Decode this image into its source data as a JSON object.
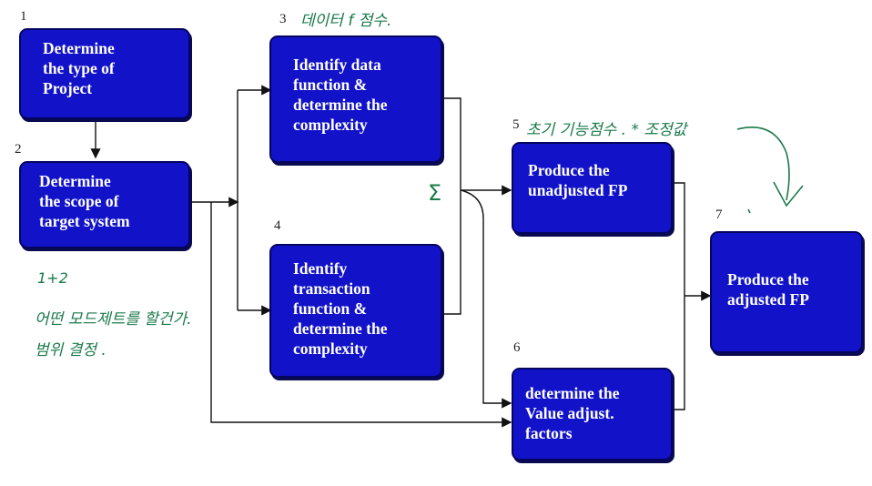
{
  "steps": [
    {
      "num": "1",
      "label": "Determine\nthe type of\nProject"
    },
    {
      "num": "2",
      "label": "Determine\nthe scope of\ntarget system"
    },
    {
      "num": "3",
      "label": "Identify data\nfunction &\ndetermine the\ncomplexity"
    },
    {
      "num": "4",
      "label": "Identify\ntransaction\nfunction &\ndetermine the\ncomplexity"
    },
    {
      "num": "5",
      "label": "Produce the\nunadjusted   FP"
    },
    {
      "num": "6",
      "label": "determine the\nValue adjust.\nfactors"
    },
    {
      "num": "7",
      "label": "Produce the\nadjusted   FP"
    }
  ],
  "annotations": {
    "note_step3": "데이터 f 점수.",
    "note_step5": "초기 기능점수 . * 조정값",
    "note_left_1": "1+2",
    "note_left_2": "어떤 모드제트를 할건가.",
    "note_left_3": "범위 결정 .",
    "mark_sum": "Σ"
  },
  "colors": {
    "box_fill": "#1212c8",
    "box_border": "#050560",
    "ink": "#1a7a4a"
  }
}
